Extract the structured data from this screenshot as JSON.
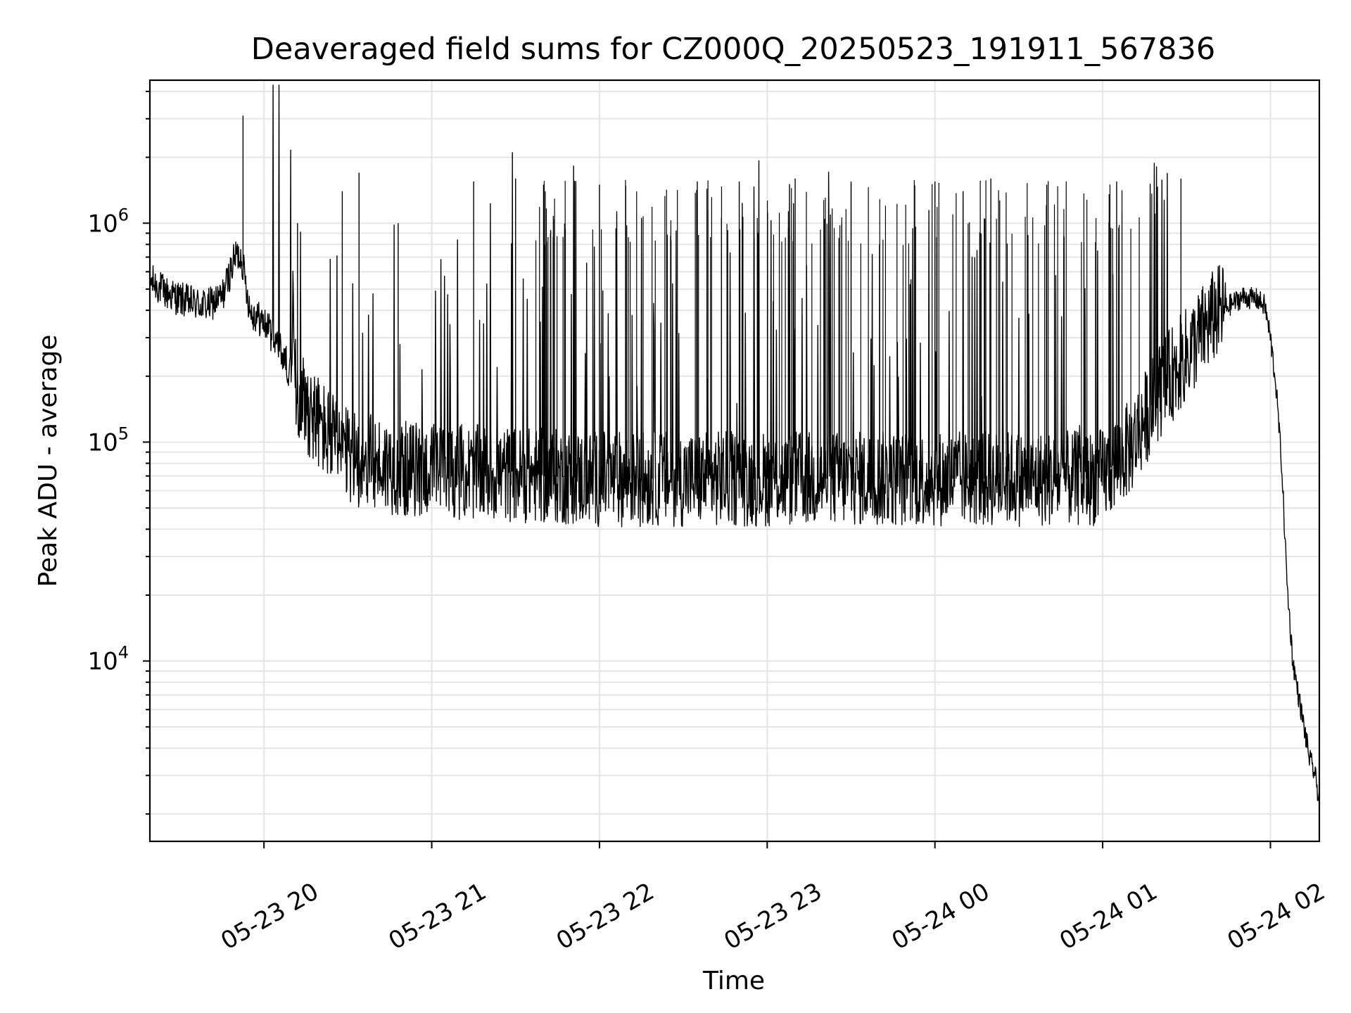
{
  "chart_data": {
    "type": "line",
    "title": "Deaveraged field sums for CZ000Q_20250523_191911_567836",
    "xlabel": "Time",
    "ylabel": "Peak ADU - average",
    "yscale": "log",
    "grid": true,
    "legend": "none",
    "line_color": "#000000",
    "grid_color": "#e5e5e5",
    "xlim": [
      "2025-05-23 19:19:11",
      "2025-05-24 02:17:30"
    ],
    "ylim": [
      1500,
      4500000
    ],
    "x_ticks": [
      "2025-05-23 20:00",
      "2025-05-23 21:00",
      "2025-05-23 22:00",
      "2025-05-23 23:00",
      "2025-05-24 00:00",
      "2025-05-24 01:00",
      "2025-05-24 02:00"
    ],
    "x_tick_labels": [
      "05-23 20",
      "05-23 21",
      "05-23 22",
      "05-23 23",
      "05-24 00",
      "05-24 01",
      "05-24 02"
    ],
    "y_tick_labels": [
      {
        "value": 10000,
        "base": "10",
        "exp": "4"
      },
      {
        "value": 100000,
        "base": "10",
        "exp": "5"
      },
      {
        "value": 1000000,
        "base": "10",
        "exp": "6"
      }
    ],
    "series": [
      {
        "x": [
          "2025-05-23 19:19:11",
          "2025-05-23 19:25:00",
          "2025-05-23 19:30:00",
          "2025-05-23 19:35:00",
          "2025-05-23 19:40:00",
          "2025-05-23 19:45:00",
          "2025-05-23 19:50:00",
          "2025-05-23 19:52:00",
          "2025-05-23 19:55:00",
          "2025-05-23 20:00:00",
          "2025-05-23 20:05:00",
          "2025-05-23 20:10:00",
          "2025-05-23 20:15:00",
          "2025-05-23 20:20:00",
          "2025-05-23 20:25:00",
          "2025-05-23 20:30:00",
          "2025-05-23 20:40:00",
          "2025-05-23 20:50:00",
          "2025-05-23 21:00:00",
          "2025-05-23 21:20:00",
          "2025-05-23 21:40:00",
          "2025-05-23 22:00:00",
          "2025-05-23 22:30:00",
          "2025-05-23 23:00:00",
          "2025-05-23 23:30:00",
          "2025-05-24 00:00:00",
          "2025-05-24 00:30:00",
          "2025-05-24 00:55:00",
          "2025-05-24 01:00:00",
          "2025-05-24 01:10:00",
          "2025-05-24 01:20:00",
          "2025-05-24 01:30:00",
          "2025-05-24 01:40:00",
          "2025-05-24 01:50:00",
          "2025-05-24 01:55:00",
          "2025-05-24 01:58:00",
          "2025-05-24 02:00:00",
          "2025-05-24 02:02:00",
          "2025-05-24 02:04:00",
          "2025-05-24 02:06:00",
          "2025-05-24 02:08:00",
          "2025-05-24 02:10:00",
          "2025-05-24 02:12:00",
          "2025-05-24 02:14:00",
          "2025-05-24 02:16:00",
          "2025-05-24 02:17:30"
        ],
        "y": [
          550000,
          480000,
          450000,
          430000,
          420000,
          460000,
          720000,
          700000,
          400000,
          350000,
          280000,
          200000,
          150000,
          120000,
          100000,
          85000,
          80000,
          75000,
          75000,
          72000,
          70000,
          68000,
          68000,
          68000,
          68000,
          68000,
          68000,
          68000,
          70000,
          95000,
          170000,
          250000,
          380000,
          460000,
          450000,
          420000,
          300000,
          180000,
          80000,
          22000,
          10000,
          7000,
          5000,
          3600,
          3000,
          2300
        ],
        "spikes": [
          {
            "x": "2025-05-23 19:52:30",
            "y": 3100000
          },
          {
            "x": "2025-05-23 20:34:00",
            "y": 1700000
          },
          {
            "x": "2025-05-23 20:28:00",
            "y": 1400000
          },
          {
            "x": "2025-05-23 20:12:00",
            "y": 1000000
          },
          {
            "x": "2025-05-23 20:48:00",
            "y": 1000000
          },
          {
            "x": "2025-05-23 21:15:00",
            "y": 1550000
          },
          {
            "x": "2025-05-23 21:30:00",
            "y": 1600000
          },
          {
            "x": "2025-05-23 21:40:00",
            "y": 1500000
          },
          {
            "x": "2025-05-23 22:00:00",
            "y": 1500000
          },
          {
            "x": "2025-05-23 22:35:00",
            "y": 1550000
          },
          {
            "x": "2025-05-23 22:50:00",
            "y": 1550000
          },
          {
            "x": "2025-05-23 23:10:00",
            "y": 1600000
          },
          {
            "x": "2025-05-23 23:30:00",
            "y": 1550000
          },
          {
            "x": "2025-05-24 00:00:00",
            "y": 1550000
          },
          {
            "x": "2025-05-24 00:20:00",
            "y": 1600000
          },
          {
            "x": "2025-05-24 00:40:00",
            "y": 1500000
          },
          {
            "x": "2025-05-24 01:05:00",
            "y": 1550000
          },
          {
            "x": "2025-05-24 01:28:00",
            "y": 1600000
          }
        ]
      }
    ]
  }
}
